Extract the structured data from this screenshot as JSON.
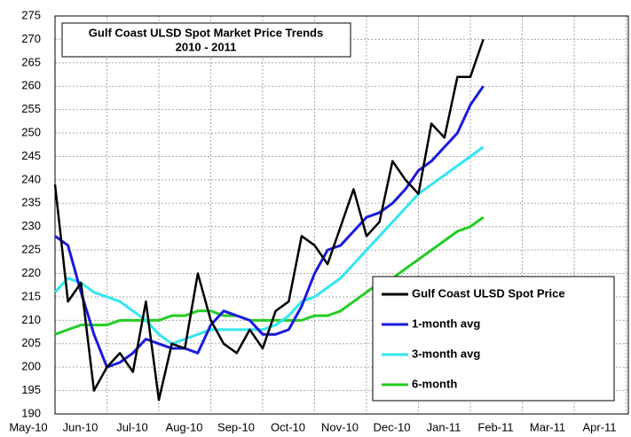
{
  "chart_data": {
    "type": "line",
    "title": "Gulf Coast ULSD Spot Market Price Trends",
    "subtitle": "2010 - 2011",
    "categories": [
      "May-10",
      null,
      null,
      null,
      "Jun-10",
      null,
      null,
      null,
      "Jul-10",
      null,
      null,
      null,
      "Aug-10",
      null,
      null,
      null,
      "Sep-10",
      null,
      null,
      null,
      "Oct-10",
      null,
      null,
      null,
      "Nov-10",
      null,
      null,
      null,
      "Dec-10",
      null,
      null,
      null,
      "Jan-11",
      null,
      null,
      null,
      "Feb-11",
      null,
      null,
      null,
      "Mar-11",
      null,
      null,
      null,
      "Apr-11",
      null,
      null,
      null
    ],
    "series": [
      {
        "name": "Gulf Coast ULSD Spot Price",
        "color": "#000000",
        "values": [
          239,
          214,
          218,
          195,
          200,
          203,
          199,
          214,
          193,
          205,
          204,
          220,
          210,
          205,
          203,
          208,
          204,
          212,
          214,
          228,
          226,
          222,
          230,
          238,
          228,
          231,
          244,
          240,
          237,
          252,
          249,
          262,
          262,
          270,
          null,
          null,
          null,
          null,
          null,
          null,
          null,
          null,
          null,
          null,
          null,
          null,
          null,
          null
        ]
      },
      {
        "name": "1-month avg",
        "color": "#1a1adc",
        "values": [
          228,
          226,
          216,
          207,
          200,
          201,
          203,
          206,
          205,
          204,
          204,
          203,
          209,
          212,
          211,
          210,
          207,
          207,
          208,
          213,
          220,
          225,
          226,
          229,
          232,
          233,
          235,
          238,
          242,
          244,
          247,
          250,
          256,
          260,
          null,
          null,
          null,
          null,
          null,
          null,
          null,
          null,
          null,
          null,
          null,
          null,
          null,
          null
        ]
      },
      {
        "name": "3-month avg",
        "color": "#33e6f0",
        "values": [
          216,
          219,
          218,
          216,
          215,
          214,
          212,
          210,
          207,
          205,
          206,
          207,
          208,
          208,
          208,
          208,
          208,
          209,
          211,
          214,
          215,
          217,
          219,
          222,
          225,
          228,
          231,
          234,
          237,
          239,
          241,
          243,
          245,
          247,
          null,
          null,
          null,
          null,
          null,
          null,
          null,
          null,
          null,
          null,
          null,
          null,
          null,
          null
        ]
      },
      {
        "name": "6-month",
        "color": "#22cc22",
        "values": [
          207,
          208,
          209,
          209,
          209,
          210,
          210,
          210,
          210,
          211,
          211,
          212,
          212,
          211,
          211,
          210,
          210,
          210,
          210,
          210,
          211,
          211,
          212,
          214,
          216,
          218,
          219,
          221,
          223,
          225,
          227,
          229,
          230,
          232,
          null,
          null,
          null,
          null,
          null,
          null,
          null,
          null,
          null,
          null,
          null,
          null,
          null,
          null
        ]
      }
    ],
    "ylim": [
      190,
      275
    ],
    "yticks": [
      190,
      195,
      200,
      205,
      210,
      215,
      220,
      225,
      230,
      235,
      240,
      245,
      250,
      255,
      260,
      265,
      270,
      275
    ],
    "grid": true
  }
}
